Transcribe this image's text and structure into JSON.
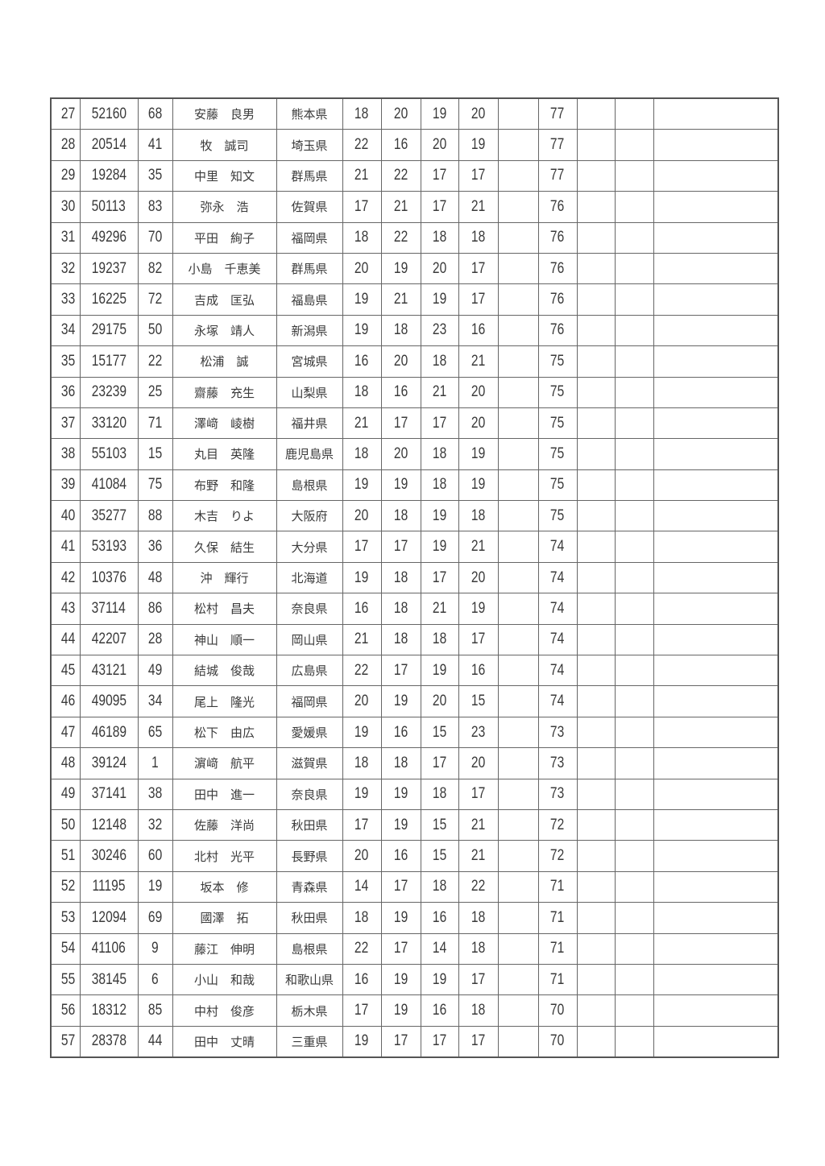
{
  "table": {
    "rows": [
      {
        "rank": "27",
        "id": "52160",
        "no": "68",
        "name": "安藤　良男",
        "pref": "熊本県",
        "s1": "18",
        "s2": "20",
        "s3": "19",
        "s4": "20",
        "total": "77"
      },
      {
        "rank": "28",
        "id": "20514",
        "no": "41",
        "name": "牧　誠司",
        "pref": "埼玉県",
        "s1": "22",
        "s2": "16",
        "s3": "20",
        "s4": "19",
        "total": "77"
      },
      {
        "rank": "29",
        "id": "19284",
        "no": "35",
        "name": "中里　知文",
        "pref": "群馬県",
        "s1": "21",
        "s2": "22",
        "s3": "17",
        "s4": "17",
        "total": "77"
      },
      {
        "rank": "30",
        "id": "50113",
        "no": "83",
        "name": "弥永　浩",
        "pref": "佐賀県",
        "s1": "17",
        "s2": "21",
        "s3": "17",
        "s4": "21",
        "total": "76"
      },
      {
        "rank": "31",
        "id": "49296",
        "no": "70",
        "name": "平田　絢子",
        "pref": "福岡県",
        "s1": "18",
        "s2": "22",
        "s3": "18",
        "s4": "18",
        "total": "76"
      },
      {
        "rank": "32",
        "id": "19237",
        "no": "82",
        "name": "小島　千恵美",
        "pref": "群馬県",
        "s1": "20",
        "s2": "19",
        "s3": "20",
        "s4": "17",
        "total": "76"
      },
      {
        "rank": "33",
        "id": "16225",
        "no": "72",
        "name": "吉成　匡弘",
        "pref": "福島県",
        "s1": "19",
        "s2": "21",
        "s3": "19",
        "s4": "17",
        "total": "76"
      },
      {
        "rank": "34",
        "id": "29175",
        "no": "50",
        "name": "永塚　靖人",
        "pref": "新潟県",
        "s1": "19",
        "s2": "18",
        "s3": "23",
        "s4": "16",
        "total": "76"
      },
      {
        "rank": "35",
        "id": "15177",
        "no": "22",
        "name": "松浦　誠",
        "pref": "宮城県",
        "s1": "16",
        "s2": "20",
        "s3": "18",
        "s4": "21",
        "total": "75"
      },
      {
        "rank": "36",
        "id": "23239",
        "no": "25",
        "name": "齋藤　充生",
        "pref": "山梨県",
        "s1": "18",
        "s2": "16",
        "s3": "21",
        "s4": "20",
        "total": "75"
      },
      {
        "rank": "37",
        "id": "33120",
        "no": "71",
        "name": "澤﨑　崚樹",
        "pref": "福井県",
        "s1": "21",
        "s2": "17",
        "s3": "17",
        "s4": "20",
        "total": "75"
      },
      {
        "rank": "38",
        "id": "55103",
        "no": "15",
        "name": "丸目　英隆",
        "pref": "鹿児島県",
        "s1": "18",
        "s2": "20",
        "s3": "18",
        "s4": "19",
        "total": "75"
      },
      {
        "rank": "39",
        "id": "41084",
        "no": "75",
        "name": "布野　和隆",
        "pref": "島根県",
        "s1": "19",
        "s2": "19",
        "s3": "18",
        "s4": "19",
        "total": "75"
      },
      {
        "rank": "40",
        "id": "35277",
        "no": "88",
        "name": "木吉　りよ",
        "pref": "大阪府",
        "s1": "20",
        "s2": "18",
        "s3": "19",
        "s4": "18",
        "total": "75"
      },
      {
        "rank": "41",
        "id": "53193",
        "no": "36",
        "name": "久保　結生",
        "pref": "大分県",
        "s1": "17",
        "s2": "17",
        "s3": "19",
        "s4": "21",
        "total": "74"
      },
      {
        "rank": "42",
        "id": "10376",
        "no": "48",
        "name": "沖　輝行",
        "pref": "北海道",
        "s1": "19",
        "s2": "18",
        "s3": "17",
        "s4": "20",
        "total": "74"
      },
      {
        "rank": "43",
        "id": "37114",
        "no": "86",
        "name": "松村　昌夫",
        "pref": "奈良県",
        "s1": "16",
        "s2": "18",
        "s3": "21",
        "s4": "19",
        "total": "74"
      },
      {
        "rank": "44",
        "id": "42207",
        "no": "28",
        "name": "神山　順一",
        "pref": "岡山県",
        "s1": "21",
        "s2": "18",
        "s3": "18",
        "s4": "17",
        "total": "74"
      },
      {
        "rank": "45",
        "id": "43121",
        "no": "49",
        "name": "結城　俊哉",
        "pref": "広島県",
        "s1": "22",
        "s2": "17",
        "s3": "19",
        "s4": "16",
        "total": "74"
      },
      {
        "rank": "46",
        "id": "49095",
        "no": "34",
        "name": "尾上　隆光",
        "pref": "福岡県",
        "s1": "20",
        "s2": "19",
        "s3": "20",
        "s4": "15",
        "total": "74"
      },
      {
        "rank": "47",
        "id": "46189",
        "no": "65",
        "name": "松下　由広",
        "pref": "愛媛県",
        "s1": "19",
        "s2": "16",
        "s3": "15",
        "s4": "23",
        "total": "73"
      },
      {
        "rank": "48",
        "id": "39124",
        "no": "1",
        "name": "濵﨑　航平",
        "pref": "滋賀県",
        "s1": "18",
        "s2": "18",
        "s3": "17",
        "s4": "20",
        "total": "73"
      },
      {
        "rank": "49",
        "id": "37141",
        "no": "38",
        "name": "田中　進一",
        "pref": "奈良県",
        "s1": "19",
        "s2": "19",
        "s3": "18",
        "s4": "17",
        "total": "73"
      },
      {
        "rank": "50",
        "id": "12148",
        "no": "32",
        "name": "佐藤　洋尚",
        "pref": "秋田県",
        "s1": "17",
        "s2": "19",
        "s3": "15",
        "s4": "21",
        "total": "72"
      },
      {
        "rank": "51",
        "id": "30246",
        "no": "60",
        "name": "北村　光平",
        "pref": "長野県",
        "s1": "20",
        "s2": "16",
        "s3": "15",
        "s4": "21",
        "total": "72"
      },
      {
        "rank": "52",
        "id": "11195",
        "no": "19",
        "name": "坂本　修",
        "pref": "青森県",
        "s1": "14",
        "s2": "17",
        "s3": "18",
        "s4": "22",
        "total": "71"
      },
      {
        "rank": "53",
        "id": "12094",
        "no": "69",
        "name": "國澤　拓",
        "pref": "秋田県",
        "s1": "18",
        "s2": "19",
        "s3": "16",
        "s4": "18",
        "total": "71"
      },
      {
        "rank": "54",
        "id": "41106",
        "no": "9",
        "name": "藤江　伸明",
        "pref": "島根県",
        "s1": "22",
        "s2": "17",
        "s3": "14",
        "s4": "18",
        "total": "71"
      },
      {
        "rank": "55",
        "id": "38145",
        "no": "6",
        "name": "小山　和哉",
        "pref": "和歌山県",
        "s1": "16",
        "s2": "19",
        "s3": "19",
        "s4": "17",
        "total": "71"
      },
      {
        "rank": "56",
        "id": "18312",
        "no": "85",
        "name": "中村　俊彦",
        "pref": "栃木県",
        "s1": "17",
        "s2": "19",
        "s3": "16",
        "s4": "18",
        "total": "70"
      },
      {
        "rank": "57",
        "id": "28378",
        "no": "44",
        "name": "田中　丈晴",
        "pref": "三重県",
        "s1": "19",
        "s2": "17",
        "s3": "17",
        "s4": "17",
        "total": "70"
      }
    ]
  }
}
